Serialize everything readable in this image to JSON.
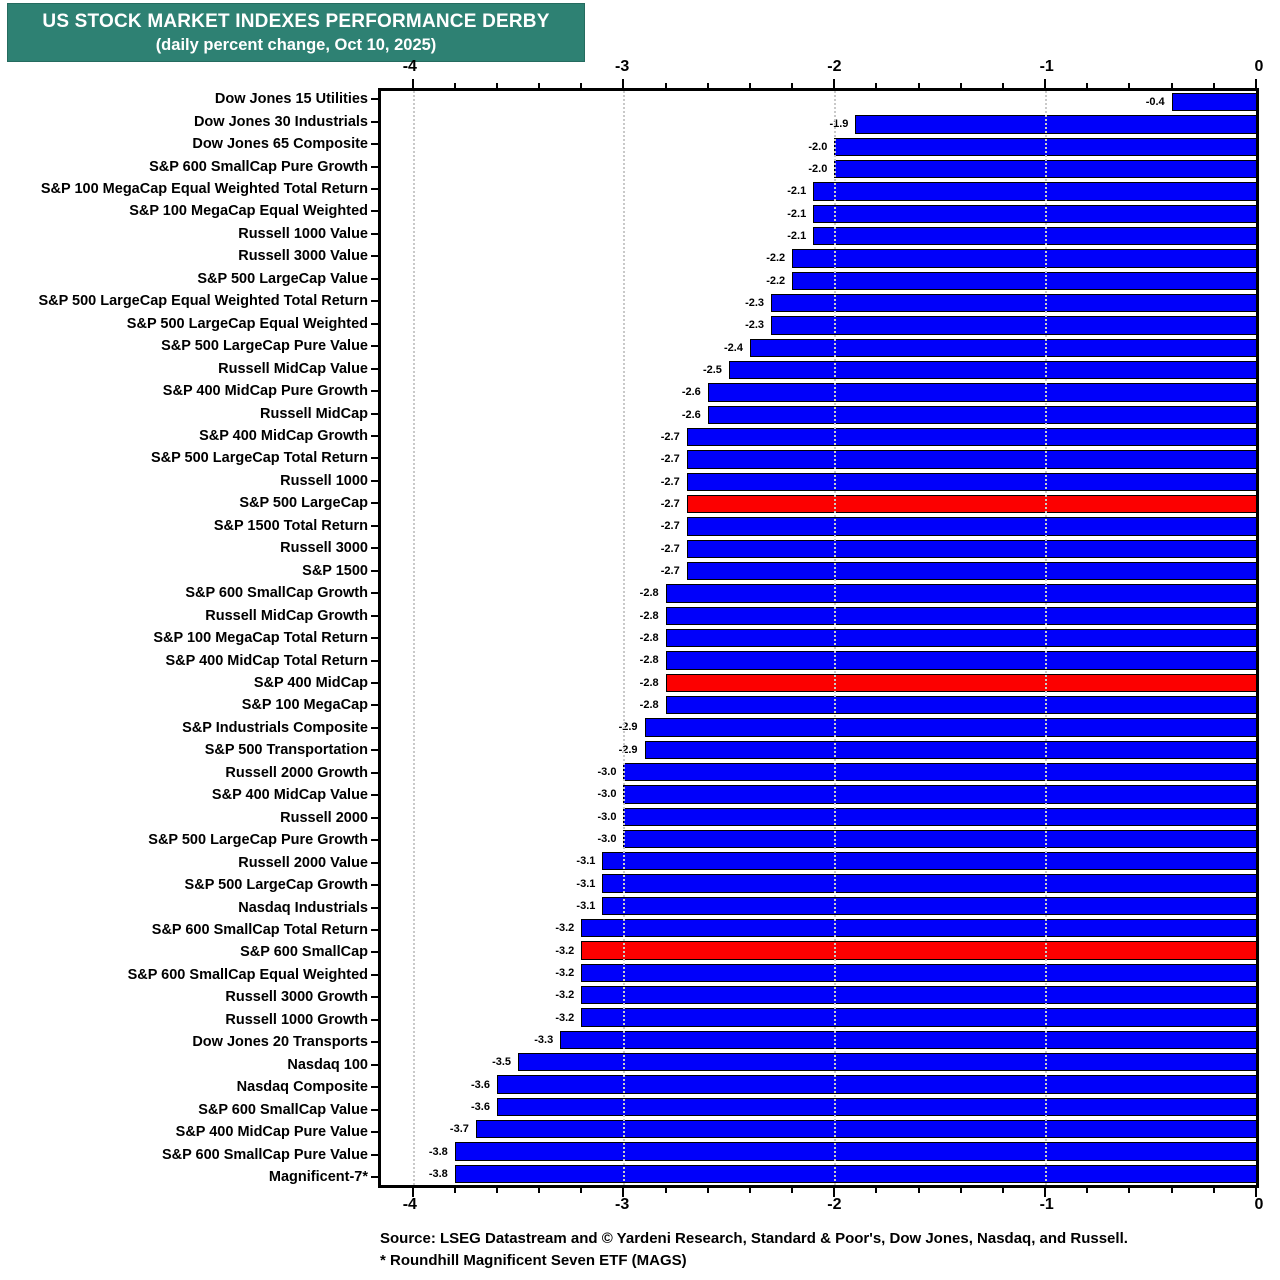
{
  "title": {
    "line1": "US STOCK MARKET INDEXES PERFORMANCE DERBY",
    "line2": "(daily percent change, Oct 10, 2025)"
  },
  "colors": {
    "title_bg": "#2e8173",
    "bar_blue": "#0000fa",
    "bar_red": "#fc0000",
    "grid": "#c9c9c9"
  },
  "footer": {
    "source": "Source: LSEG Datastream and © Yardeni Research, Standard & Poor's, Dow Jones, Nasdaq, and Russell.",
    "note": "* Roundhill Magnificent Seven ETF (MAGS)"
  },
  "chart_data": {
    "type": "bar",
    "orientation": "horizontal",
    "title": "US STOCK MARKET INDEXES PERFORMANCE DERBY (daily percent change, Oct 10, 2025)",
    "xlabel": "daily percent change",
    "xlim": [
      -4.15,
      0
    ],
    "ticks": [
      -4,
      -3,
      -2,
      -1,
      0
    ],
    "minor_tick_step": 0.2,
    "grid": "dotted vertical at major ticks",
    "categories": [
      "Dow Jones 15 Utilities",
      "Dow Jones 30 Industrials",
      "Dow Jones 65 Composite",
      "S&P 600 SmallCap Pure Growth",
      "S&P 100 MegaCap Equal Weighted Total Return",
      "S&P 100 MegaCap Equal Weighted",
      "Russell 1000 Value",
      "Russell 3000 Value",
      "S&P 500 LargeCap Value",
      "S&P 500 LargeCap Equal Weighted Total Return",
      "S&P 500 LargeCap Equal Weighted",
      "S&P 500 LargeCap Pure Value",
      "Russell MidCap Value",
      "S&P 400 MidCap Pure Growth",
      "Russell MidCap",
      "S&P 400 MidCap Growth",
      "S&P 500 LargeCap Total Return",
      "Russell 1000",
      "S&P 500 LargeCap",
      "S&P 1500 Total Return",
      "Russell 3000",
      "S&P 1500",
      "S&P 600 SmallCap Growth",
      "Russell MidCap Growth",
      "S&P 100 MegaCap Total Return",
      "S&P 400 MidCap Total Return",
      "S&P 400 MidCap",
      "S&P 100 MegaCap",
      "S&P Industrials Composite",
      "S&P 500 Transportation",
      "Russell 2000 Growth",
      "S&P 400 MidCap Value",
      "Russell 2000",
      "S&P 500 LargeCap Pure Growth",
      "Russell 2000 Value",
      "S&P 500 LargeCap Growth",
      "Nasdaq Industrials",
      "S&P 600 SmallCap Total Return",
      "S&P 600 SmallCap",
      "S&P 600 SmallCap Equal Weighted",
      "Russell 3000 Growth",
      "Russell 1000 Growth",
      "Dow Jones 20 Transports",
      "Nasdaq 100",
      "Nasdaq Composite",
      "S&P 600 SmallCap Value",
      "S&P 400 MidCap Pure Value",
      "S&P 600 SmallCap Pure Value",
      "Magnificent-7*"
    ],
    "values": [
      -0.4,
      -1.9,
      -2.0,
      -2.0,
      -2.1,
      -2.1,
      -2.1,
      -2.2,
      -2.2,
      -2.3,
      -2.3,
      -2.4,
      -2.5,
      -2.6,
      -2.6,
      -2.7,
      -2.7,
      -2.7,
      -2.7,
      -2.7,
      -2.7,
      -2.7,
      -2.8,
      -2.8,
      -2.8,
      -2.8,
      -2.8,
      -2.8,
      -2.9,
      -2.9,
      -3.0,
      -3.0,
      -3.0,
      -3.0,
      -3.1,
      -3.1,
      -3.1,
      -3.2,
      -3.2,
      -3.2,
      -3.2,
      -3.2,
      -3.3,
      -3.5,
      -3.6,
      -3.6,
      -3.7,
      -3.8,
      -3.8
    ],
    "red_highlight_indexes": [
      18,
      26,
      38
    ],
    "red_highlight_labels": [
      "S&P 500 LargeCap",
      "S&P 400 MidCap",
      "S&P 600 SmallCap"
    ]
  }
}
